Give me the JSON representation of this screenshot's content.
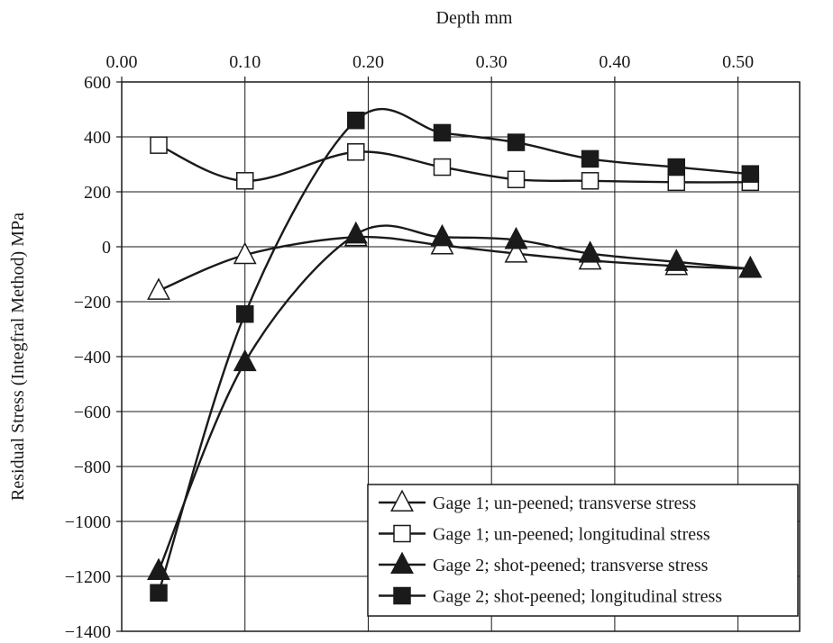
{
  "chart_data": {
    "type": "line",
    "xlabel": "Depth mm",
    "ylabel": "Residual Stress (Integfral Method) MPa",
    "xlim": [
      0.0,
      0.55
    ],
    "ylim": [
      -1400,
      600
    ],
    "x_axis_position": "top",
    "grid": true,
    "legend_position": "bottom-right",
    "x_ticks": [
      {
        "value": 0.0,
        "label": "0.00"
      },
      {
        "value": 0.1,
        "label": "0.10"
      },
      {
        "value": 0.2,
        "label": "0.20"
      },
      {
        "value": 0.3,
        "label": "0.30"
      },
      {
        "value": 0.4,
        "label": "0.40"
      },
      {
        "value": 0.5,
        "label": "0.50"
      }
    ],
    "y_ticks": [
      {
        "value": 600,
        "label": "600"
      },
      {
        "value": 400,
        "label": "400"
      },
      {
        "value": 200,
        "label": "200"
      },
      {
        "value": 0,
        "label": "0"
      },
      {
        "value": -200,
        "label": "−200"
      },
      {
        "value": -400,
        "label": "−400"
      },
      {
        "value": -600,
        "label": "−600"
      },
      {
        "value": -800,
        "label": "−800"
      },
      {
        "value": -1000,
        "label": "−1000"
      },
      {
        "value": -1200,
        "label": "−1200"
      },
      {
        "value": -1400,
        "label": "−1400"
      }
    ],
    "series": [
      {
        "name": "Gage 1; un-peened; transverse stress",
        "marker": "triangle-open",
        "color": "#1a1a1a",
        "x": [
          0.03,
          0.1,
          0.19,
          0.26,
          0.32,
          0.38,
          0.45,
          0.51
        ],
        "y": [
          -160,
          -30,
          35,
          5,
          -25,
          -50,
          -70,
          -80
        ]
      },
      {
        "name": "Gage 1; un-peened; longitudinal stress",
        "marker": "square-open",
        "color": "#1a1a1a",
        "x": [
          0.03,
          0.1,
          0.19,
          0.26,
          0.32,
          0.38,
          0.45,
          0.51
        ],
        "y": [
          370,
          240,
          345,
          290,
          245,
          240,
          235,
          235
        ]
      },
      {
        "name": "Gage 2; shot-peened; transverse stress",
        "marker": "triangle-filled",
        "color": "#1a1a1a",
        "x": [
          0.03,
          0.1,
          0.19,
          0.26,
          0.32,
          0.38,
          0.45,
          0.51
        ],
        "y": [
          -1180,
          -420,
          45,
          35,
          25,
          -25,
          -55,
          -80
        ]
      },
      {
        "name": "Gage 2; shot-peened; longitudinal stress",
        "marker": "square-filled",
        "color": "#1a1a1a",
        "x": [
          0.03,
          0.1,
          0.19,
          0.26,
          0.32,
          0.38,
          0.45,
          0.51
        ],
        "y": [
          -1260,
          -245,
          460,
          415,
          380,
          320,
          290,
          265
        ]
      }
    ]
  }
}
